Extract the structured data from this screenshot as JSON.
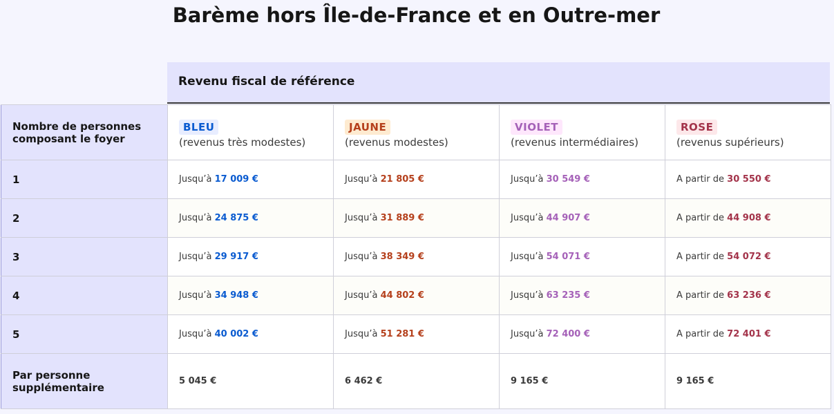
{
  "title": "Barème hors Île-de-France et en Outre-mer",
  "header": {
    "revenue_label": "Revenu fiscal de référence"
  },
  "table": {
    "row_header_label": "Nombre de personnes composant le foyer",
    "categories": [
      {
        "badge": "BLEU",
        "desc": "(revenus très modestes)",
        "badge_bg": "#e8edff",
        "badge_color": "#0a5bd0"
      },
      {
        "badge": "JAUNE",
        "desc": "(revenus modestes)",
        "badge_bg": "#feebd0",
        "badge_color": "#b5401c"
      },
      {
        "badge": "VIOLET",
        "desc": "(revenus intermédiaires)",
        "badge_bg": "#fee7fc",
        "badge_color": "#a561b8"
      },
      {
        "badge": "ROSE",
        "desc": "(revenus supérieurs)",
        "badge_bg": "#fde8ea",
        "badge_color": "#a3334a"
      }
    ],
    "rows": [
      {
        "persons": "1",
        "cells": [
          {
            "prefix": "Jusqu’à ",
            "amount": "17 009 €"
          },
          {
            "prefix": "Jusqu’à ",
            "amount": "21 805 €"
          },
          {
            "prefix": "Jusqu’à ",
            "amount": "30 549 €"
          },
          {
            "prefix": "A partir de ",
            "amount": "30 550 €"
          }
        ]
      },
      {
        "persons": "2",
        "cells": [
          {
            "prefix": "Jusqu’à ",
            "amount": "24 875 €"
          },
          {
            "prefix": "Jusqu’à ",
            "amount": "31 889 €"
          },
          {
            "prefix": "Jusqu’à ",
            "amount": "44 907 €"
          },
          {
            "prefix": "A partir de ",
            "amount": "44 908 €"
          }
        ]
      },
      {
        "persons": "3",
        "cells": [
          {
            "prefix": "Jusqu’à ",
            "amount": "29 917 €"
          },
          {
            "prefix": "Jusqu’à ",
            "amount": "38 349 €"
          },
          {
            "prefix": "Jusqu’à ",
            "amount": "54 071 €"
          },
          {
            "prefix": "A partir de ",
            "amount": "54 072 €"
          }
        ]
      },
      {
        "persons": "4",
        "cells": [
          {
            "prefix": "Jusqu’à ",
            "amount": "34 948 €"
          },
          {
            "prefix": "Jusqu’à ",
            "amount": "44 802 €"
          },
          {
            "prefix": "Jusqu’à ",
            "amount": "63 235 €"
          },
          {
            "prefix": "A partir de ",
            "amount": "63 236 €"
          }
        ]
      },
      {
        "persons": "5",
        "cells": [
          {
            "prefix": "Jusqu’à ",
            "amount": "40 002 €"
          },
          {
            "prefix": "Jusqu’à ",
            "amount": "51 281 €"
          },
          {
            "prefix": "Jusqu’à ",
            "amount": "72 400 €"
          },
          {
            "prefix": "A partir de ",
            "amount": "72 401 €"
          }
        ]
      }
    ],
    "extra_row": {
      "label": "Par personne supplémentaire",
      "values": [
        "5 045 €",
        "6 462 €",
        "9 165 €",
        "9 165 €"
      ]
    }
  }
}
